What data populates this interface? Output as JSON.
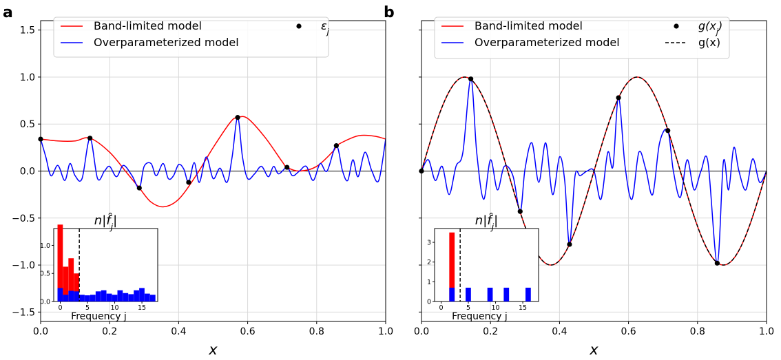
{
  "panels": [
    {
      "letter": "a",
      "xlabel": "x",
      "xticks": [
        "0.0",
        "0.2",
        "0.4",
        "0.6",
        "0.8",
        "1.0"
      ],
      "yticks": [
        "1.5",
        "1.0",
        "0.5",
        "0.0",
        "−0.5",
        "−1.0",
        "−1.5"
      ],
      "legend": {
        "entries": [
          {
            "label": "Band-limited model",
            "color": "#ff0000",
            "kind": "line"
          },
          {
            "label": "Overparameterized model",
            "color": "#0000ff",
            "kind": "line"
          },
          {
            "label": "ε",
            "sub": "j",
            "color": "#000000",
            "kind": "dot"
          }
        ]
      },
      "inset": {
        "title": "n|f̂",
        "title_sub": "j",
        "title_end": "|",
        "xlabel": "Frequency j",
        "xticks": [
          "0",
          "5",
          "10",
          "15"
        ],
        "yticks": [
          "0.0",
          "0.5",
          "1.0"
        ]
      }
    },
    {
      "letter": "b",
      "xlabel": "x",
      "xticks": [
        "0.0",
        "0.2",
        "0.4",
        "0.6",
        "0.8",
        "1.0"
      ],
      "legend": {
        "entries": [
          {
            "label": "Band-limited model",
            "color": "#ff0000",
            "kind": "line"
          },
          {
            "label": "Overparameterized model",
            "color": "#0000ff",
            "kind": "line"
          },
          {
            "label": "g(x",
            "sub": "j",
            "label_end": ")",
            "color": "#000000",
            "kind": "dot"
          },
          {
            "label": "g(x)",
            "color": "#000000",
            "kind": "dash"
          }
        ]
      },
      "inset": {
        "title": "n|f̂",
        "title_sub": "j",
        "title_end": "|",
        "xlabel": "Frequency j",
        "xticks": [
          "0",
          "5",
          "10",
          "15"
        ],
        "yticks": [
          "0",
          "1",
          "2",
          "3"
        ]
      }
    }
  ],
  "chart_data": [
    {
      "type": "line",
      "panel": "a",
      "xlabel": "x",
      "xlim": [
        0,
        1
      ],
      "ylim": [
        -1.6,
        1.6
      ],
      "grid": true,
      "legend_position": "top",
      "sample_points": {
        "name": "ε_j",
        "x": [
          0.0,
          0.143,
          0.286,
          0.429,
          0.571,
          0.714,
          0.857
        ],
        "y": [
          0.34,
          0.35,
          -0.18,
          -0.12,
          0.57,
          0.04,
          0.27
        ]
      },
      "series": [
        {
          "name": "Band-limited model",
          "x": [
            0.0,
            0.05,
            0.1,
            0.143,
            0.2,
            0.25,
            0.286,
            0.32,
            0.357,
            0.4,
            0.45,
            0.5,
            0.55,
            0.571,
            0.6,
            0.65,
            0.7,
            0.714,
            0.75,
            0.8,
            0.85,
            0.857,
            0.9,
            0.93,
            0.97,
            1.0
          ],
          "y": [
            0.34,
            0.32,
            0.32,
            0.35,
            0.2,
            -0.02,
            -0.18,
            -0.33,
            -0.38,
            -0.3,
            -0.05,
            0.25,
            0.52,
            0.57,
            0.56,
            0.36,
            0.1,
            0.04,
            0.0,
            0.05,
            0.22,
            0.27,
            0.35,
            0.38,
            0.37,
            0.34
          ]
        },
        {
          "name": "Overparameterized model",
          "x": [
            0.0,
            0.015,
            0.03,
            0.05,
            0.07,
            0.085,
            0.1,
            0.12,
            0.143,
            0.165,
            0.185,
            0.2,
            0.22,
            0.24,
            0.265,
            0.286,
            0.3,
            0.32,
            0.335,
            0.355,
            0.37,
            0.385,
            0.4,
            0.415,
            0.429,
            0.445,
            0.46,
            0.48,
            0.5,
            0.52,
            0.54,
            0.555,
            0.571,
            0.585,
            0.6,
            0.62,
            0.64,
            0.66,
            0.675,
            0.69,
            0.714,
            0.73,
            0.75,
            0.77,
            0.79,
            0.81,
            0.83,
            0.857,
            0.875,
            0.89,
            0.905,
            0.92,
            0.94,
            0.96,
            0.98,
            1.0
          ],
          "y": [
            0.34,
            0.15,
            -0.05,
            0.06,
            -0.1,
            0.08,
            -0.05,
            -0.08,
            0.35,
            -0.08,
            0.0,
            0.05,
            -0.06,
            0.06,
            -0.05,
            -0.18,
            0.05,
            0.08,
            -0.05,
            0.08,
            -0.08,
            -0.05,
            0.07,
            0.02,
            -0.12,
            0.09,
            -0.12,
            0.15,
            -0.08,
            0.03,
            -0.12,
            0.15,
            0.57,
            0.15,
            -0.08,
            -0.03,
            0.05,
            -0.06,
            0.05,
            -0.03,
            0.04,
            -0.05,
            0.0,
            0.05,
            -0.1,
            0.08,
            0.0,
            0.27,
            0.0,
            -0.1,
            0.12,
            -0.06,
            0.2,
            0.0,
            -0.1,
            0.34
          ]
        }
      ],
      "inset": {
        "type": "bar",
        "xlabel": "Frequency j",
        "ylim": [
          0,
          1.3
        ],
        "cutoff": 3.5,
        "red": [
          1.37,
          0.62,
          0.77,
          0.5
        ],
        "blue": [
          0.24,
          0.12,
          0.19,
          0.18,
          0.12,
          0.11,
          0.12,
          0.18,
          0.2,
          0.14,
          0.12,
          0.2,
          0.15,
          0.13,
          0.2,
          0.24,
          0.14,
          0.12
        ]
      }
    },
    {
      "type": "line",
      "panel": "b",
      "xlabel": "x",
      "xlim": [
        0,
        1
      ],
      "ylim": [
        -1.6,
        1.6
      ],
      "grid": true,
      "legend_position": "top",
      "sample_points": {
        "name": "g(x_j)",
        "x": [
          0.0,
          0.143,
          0.286,
          0.429,
          0.571,
          0.714,
          0.857
        ],
        "y": [
          0.0,
          0.98,
          -0.43,
          -0.78,
          0.78,
          0.43,
          -0.98
        ]
      },
      "series": [
        {
          "name": "g(x)",
          "function": "sin(4πx)",
          "style": "dashed"
        },
        {
          "name": "Band-limited model",
          "function": "sin(4πx)"
        },
        {
          "name": "Overparameterized model",
          "x": [
            0.0,
            0.02,
            0.04,
            0.06,
            0.08,
            0.1,
            0.12,
            0.143,
            0.16,
            0.18,
            0.2,
            0.22,
            0.24,
            0.265,
            0.286,
            0.3,
            0.32,
            0.34,
            0.36,
            0.38,
            0.4,
            0.415,
            0.429,
            0.445,
            0.46,
            0.48,
            0.5,
            0.52,
            0.54,
            0.555,
            0.571,
            0.59,
            0.61,
            0.63,
            0.65,
            0.67,
            0.69,
            0.714,
            0.73,
            0.75,
            0.77,
            0.79,
            0.81,
            0.83,
            0.857,
            0.875,
            0.89,
            0.905,
            0.92,
            0.94,
            0.96,
            0.98,
            1.0
          ],
          "y": [
            0.0,
            0.12,
            -0.1,
            0.05,
            -0.25,
            0.05,
            0.2,
            0.98,
            0.2,
            -0.3,
            0.12,
            -0.2,
            0.05,
            -0.05,
            -0.43,
            0.02,
            0.3,
            -0.12,
            0.3,
            -0.25,
            0.15,
            -0.1,
            -0.78,
            -0.05,
            -0.05,
            0.0,
            0.0,
            -0.3,
            0.2,
            0.05,
            0.78,
            0.05,
            -0.3,
            0.2,
            0.02,
            -0.25,
            0.3,
            0.43,
            0.0,
            -0.28,
            0.12,
            -0.2,
            0.0,
            0.1,
            -0.98,
            0.1,
            -0.2,
            0.25,
            0.0,
            -0.2,
            0.13,
            -0.12,
            0.0
          ]
        }
      ],
      "inset": {
        "type": "bar",
        "xlabel": "Frequency j",
        "ylim": [
          0,
          3.7
        ],
        "cutoff": 3.5,
        "red": [
          0,
          0,
          3.5,
          0
        ],
        "blue": [
          0,
          0,
          0.7,
          0,
          0,
          0.7,
          0,
          0,
          0,
          0.7,
          0,
          0,
          0.7,
          0,
          0,
          0,
          0.7,
          0
        ]
      }
    }
  ]
}
